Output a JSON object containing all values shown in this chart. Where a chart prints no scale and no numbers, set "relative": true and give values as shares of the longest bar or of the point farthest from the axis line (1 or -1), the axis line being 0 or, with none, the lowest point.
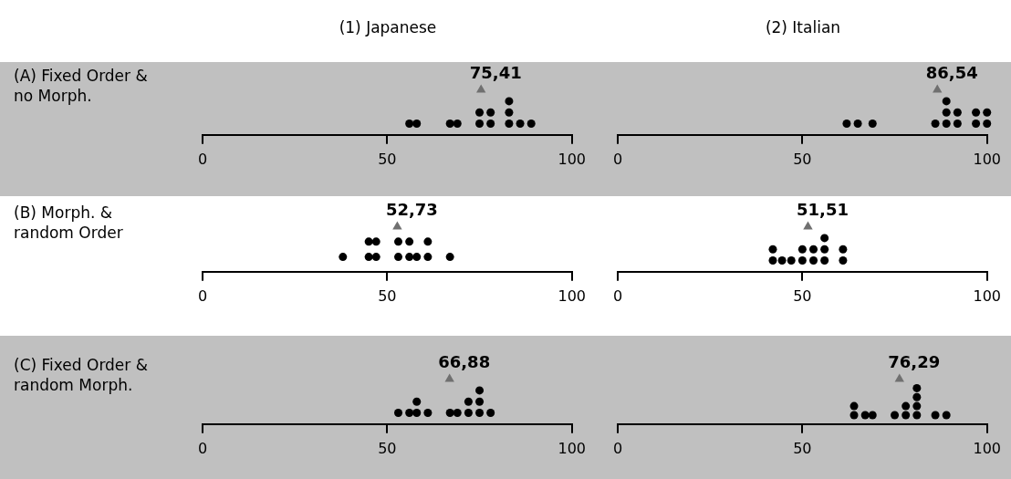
{
  "chart_data": [
    {
      "type": "scatter",
      "title": "(1) Japanese",
      "ylabel": "(A) Fixed Order & no Morph.",
      "relative": true,
      "xlim": [
        0,
        100
      ],
      "xticks": [
        0,
        50,
        100
      ],
      "tick_labels": "x",
      "annotations": [
        {
          "text": "75,41",
          "x": 75.41,
          "y": 1
        }
      ],
      "series": [
        {
          "color": "#000000",
          "marker": "circle",
          "x": [
            56,
            58,
            67,
            69,
            75,
            75,
            78,
            78,
            83,
            83,
            83,
            86,
            89
          ],
          "values": [
            0.25,
            0.25,
            0.25,
            0.25,
            0.25,
            0.5,
            0.25,
            0.5,
            0.25,
            0.5,
            0.75,
            0.25,
            0.25
          ]
        },
        {
          "color": "#707070",
          "marker": "triangle",
          "x": [
            75.41
          ],
          "values": [
            1
          ]
        }
      ]
    },
    {
      "type": "scatter",
      "title": "(2) Italian",
      "relative": true,
      "xlim": [
        0,
        100
      ],
      "xticks": [
        0,
        50,
        100
      ],
      "tick_labels": "x",
      "annotations": [
        {
          "text": "86,54",
          "x": 86.54,
          "y": 1
        }
      ],
      "series": [
        {
          "color": "#000000",
          "marker": "circle",
          "x": [
            62,
            65,
            69,
            86,
            89,
            89,
            89,
            92,
            92,
            97,
            97,
            100,
            100
          ],
          "values": [
            0.25,
            0.25,
            0.25,
            0.25,
            0.25,
            0.5,
            0.75,
            0.25,
            0.5,
            0.25,
            0.5,
            0.25,
            0.5
          ]
        },
        {
          "color": "#707070",
          "marker": "triangle",
          "x": [
            86.54
          ],
          "values": [
            1
          ]
        }
      ]
    },
    {
      "type": "scatter",
      "ylabel": "(B) Morph. & random Order",
      "relative": true,
      "xlim": [
        0,
        100
      ],
      "xticks": [
        0,
        50,
        100
      ],
      "tick_labels": "x",
      "annotations": [
        {
          "text": "52,73",
          "x": 52.73,
          "y": 1
        }
      ],
      "series": [
        {
          "color": "#000000",
          "marker": "circle",
          "x": [
            38,
            45,
            45,
            47,
            47,
            53,
            53,
            56,
            56,
            58,
            61,
            61,
            67
          ],
          "values": [
            0.33,
            0.33,
            0.67,
            0.33,
            0.67,
            0.33,
            0.67,
            0.33,
            0.67,
            0.33,
            0.33,
            0.67,
            0.33
          ]
        },
        {
          "color": "#707070",
          "marker": "triangle",
          "x": [
            52.73
          ],
          "values": [
            1
          ]
        }
      ]
    },
    {
      "type": "scatter",
      "relative": true,
      "xlim": [
        0,
        100
      ],
      "xticks": [
        0,
        50,
        100
      ],
      "tick_labels": "x",
      "annotations": [
        {
          "text": "51,51",
          "x": 51.51,
          "y": 1
        }
      ],
      "series": [
        {
          "color": "#000000",
          "marker": "circle",
          "x": [
            42,
            42,
            44.5,
            47,
            50,
            50,
            53,
            53,
            56,
            56,
            56,
            61,
            61
          ],
          "values": [
            0.25,
            0.5,
            0.25,
            0.25,
            0.25,
            0.5,
            0.25,
            0.5,
            0.25,
            0.5,
            0.75,
            0.25,
            0.5
          ]
        },
        {
          "color": "#707070",
          "marker": "triangle",
          "x": [
            51.51
          ],
          "values": [
            1
          ]
        }
      ]
    },
    {
      "type": "scatter",
      "ylabel": "(C) Fixed Order & random Morph.",
      "relative": true,
      "xlim": [
        0,
        100
      ],
      "xticks": [
        0,
        50,
        100
      ],
      "tick_labels": "x",
      "annotations": [
        {
          "text": "66,88",
          "x": 66.88,
          "y": 1
        }
      ],
      "series": [
        {
          "color": "#000000",
          "marker": "circle",
          "x": [
            53,
            56,
            58,
            58,
            61,
            67,
            69,
            72,
            72,
            75,
            75,
            75,
            78
          ],
          "values": [
            0.25,
            0.25,
            0.25,
            0.5,
            0.25,
            0.25,
            0.25,
            0.25,
            0.5,
            0.25,
            0.5,
            0.75,
            0.25
          ]
        },
        {
          "color": "#707070",
          "marker": "triangle",
          "x": [
            66.88
          ],
          "values": [
            1
          ]
        }
      ]
    },
    {
      "type": "scatter",
      "relative": true,
      "xlim": [
        0,
        100
      ],
      "xticks": [
        0,
        50,
        100
      ],
      "tick_labels": "x",
      "annotations": [
        {
          "text": "76,29",
          "x": 76.29,
          "y": 1
        }
      ],
      "series": [
        {
          "color": "#000000",
          "marker": "circle",
          "x": [
            64,
            64,
            67,
            69,
            75,
            78,
            78,
            81,
            81,
            81,
            81,
            86,
            89
          ],
          "values": [
            0.2,
            0.4,
            0.2,
            0.2,
            0.2,
            0.2,
            0.4,
            0.2,
            0.4,
            0.6,
            0.8,
            0.2,
            0.2
          ]
        },
        {
          "color": "#707070",
          "marker": "triangle",
          "x": [
            76.29
          ],
          "values": [
            1
          ]
        }
      ]
    }
  ]
}
